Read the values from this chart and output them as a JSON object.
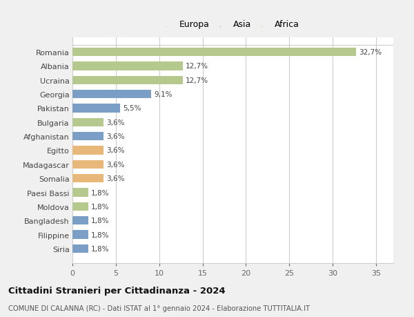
{
  "countries": [
    "Romania",
    "Albania",
    "Ucraina",
    "Georgia",
    "Pakistan",
    "Bulgaria",
    "Afghanistan",
    "Egitto",
    "Madagascar",
    "Somalia",
    "Paesi Bassi",
    "Moldova",
    "Bangladesh",
    "Filippine",
    "Siria"
  ],
  "values": [
    32.7,
    12.7,
    12.7,
    9.1,
    5.5,
    3.6,
    3.6,
    3.6,
    3.6,
    3.6,
    1.8,
    1.8,
    1.8,
    1.8,
    1.8
  ],
  "labels": [
    "32,7%",
    "12,7%",
    "12,7%",
    "9,1%",
    "5,5%",
    "3,6%",
    "3,6%",
    "3,6%",
    "3,6%",
    "3,6%",
    "1,8%",
    "1,8%",
    "1,8%",
    "1,8%",
    "1,8%"
  ],
  "continents": [
    "Europa",
    "Europa",
    "Europa",
    "Asia",
    "Asia",
    "Europa",
    "Asia",
    "Africa",
    "Africa",
    "Africa",
    "Europa",
    "Europa",
    "Asia",
    "Asia",
    "Asia"
  ],
  "colors": {
    "Europa": "#b5c98e",
    "Asia": "#7b9ec6",
    "Africa": "#e8b87a"
  },
  "legend_dot_colors": {
    "Europa": "#a8c87a",
    "Asia": "#5b82b8",
    "Africa": "#e8a855"
  },
  "figure_bg": "#f0f0f0",
  "plot_bg": "#ffffff",
  "xlim": [
    0,
    37
  ],
  "xticks": [
    0,
    5,
    10,
    15,
    20,
    25,
    30,
    35
  ],
  "title1": "Cittadini Stranieri per Cittadinanza - 2024",
  "title2": "COMUNE DI CALANNA (RC) - Dati ISTAT al 1° gennaio 2024 - Elaborazione TUTTITALIA.IT"
}
